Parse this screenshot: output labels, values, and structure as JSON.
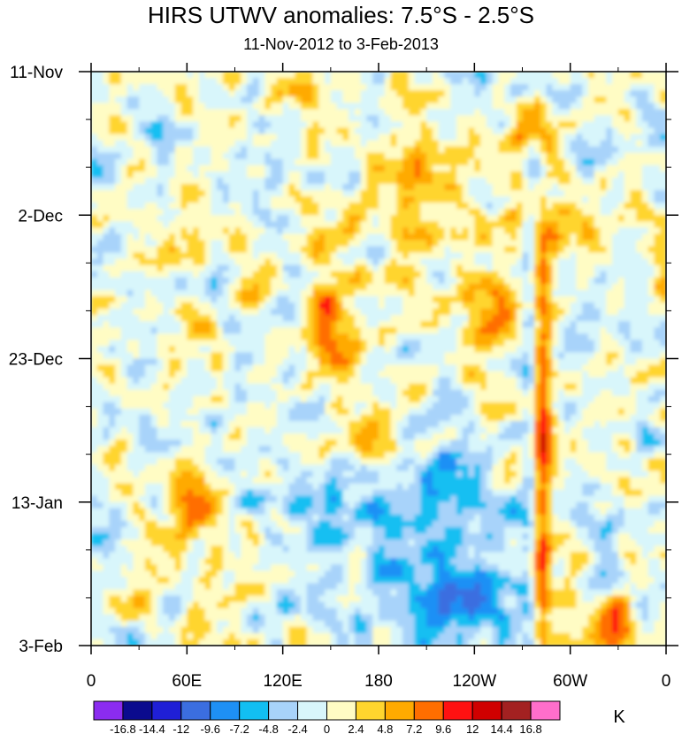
{
  "chart_data": {
    "type": "heatmap",
    "title": "HIRS UTWV anomalies: 7.5°S - 2.5°S",
    "subtitle": "11-Nov-2012 to 3-Feb-2013",
    "xlabel": "",
    "ylabel": "",
    "x_ticks": [
      "0",
      "60E",
      "120E",
      "180",
      "120W",
      "60W",
      "0"
    ],
    "x_range": [
      0,
      360
    ],
    "y_ticks": [
      "11-Nov",
      "2-Dec",
      "23-Dec",
      "13-Jan",
      "3-Feb"
    ],
    "y_range": [
      "11-Nov-2012",
      "3-Feb-2013"
    ],
    "colorbar": {
      "units": "K",
      "levels": [
        "-16.8",
        "-14.4",
        "-12",
        "-9.6",
        "-7.2",
        "-4.8",
        "-2.4",
        "0",
        "2.4",
        "4.8",
        "7.2",
        "9.6",
        "12",
        "14.4",
        "16.8"
      ],
      "colors": [
        "#8b2cf0",
        "#0b0b8e",
        "#1f1fd6",
        "#3b6ee0",
        "#1e90f5",
        "#12bff2",
        "#a8d3fa",
        "#d8f6fb",
        "#fffcc4",
        "#ffd52e",
        "#ffaa00",
        "#ff6e00",
        "#ff1111",
        "#d00000",
        "#a32121",
        "#ff6ecb"
      ]
    },
    "features": [
      {
        "description": "strong positive stationary band",
        "longitude": "~78W",
        "values_K": [
          9.6,
          16.8
        ],
        "period": "2-Dec to 3-Feb"
      },
      {
        "description": "negative anomaly region",
        "longitude": "180 to 120W",
        "values_K": [
          -9.6,
          -2.4
        ],
        "period": "13-Jan to 3-Feb"
      },
      {
        "description": "positive anomaly cluster",
        "longitude": "~145E",
        "values_K": [
          7.2,
          12
        ],
        "period": "mid to late Dec"
      }
    ]
  }
}
